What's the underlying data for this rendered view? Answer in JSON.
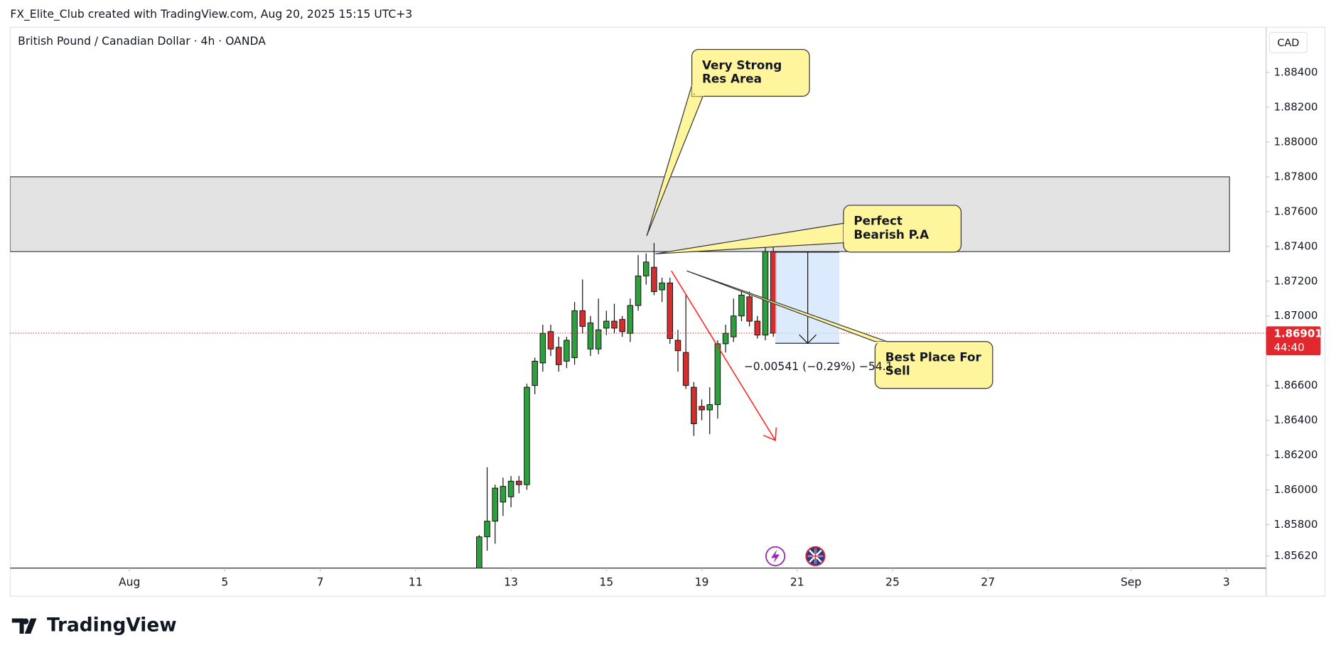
{
  "header": "FX_Elite_Club created with TradingView.com, Aug 20, 2025 15:15 UTC+3",
  "logo": "TradingView",
  "chart_data": {
    "type": "candlestick",
    "title": "British Pound / Canadian Dollar · 4h · OANDA",
    "currency": "CAD",
    "x": [
      44,
      45,
      46,
      47,
      48,
      49,
      50,
      51,
      52,
      53,
      54,
      55,
      56,
      57,
      58,
      59,
      60,
      61,
      62,
      63,
      64,
      65,
      66,
      67,
      68,
      69,
      70,
      71,
      72,
      73,
      74,
      75,
      76,
      77,
      78,
      79,
      80,
      81
    ],
    "open": [
      1.8555,
      1.8573,
      1.8582,
      1.8593,
      1.8596,
      1.8605,
      1.8603,
      1.866,
      1.8673,
      1.8691,
      1.8682,
      1.8674,
      1.8676,
      1.8703,
      1.8681,
      1.8681,
      1.8693,
      1.8697,
      1.8698,
      1.869,
      1.8706,
      1.8723,
      1.8728,
      1.8715,
      1.8719,
      1.8686,
      1.8679,
      1.8659,
      1.8648,
      1.8646,
      1.8649,
      1.8684,
      1.8688,
      1.87,
      1.8711,
      1.8697,
      1.8689,
      1.8737
    ],
    "high": [
      1.8574,
      1.8613,
      1.8603,
      1.8607,
      1.8608,
      1.8608,
      1.8661,
      1.8676,
      1.8695,
      1.8695,
      1.8688,
      1.8688,
      1.8708,
      1.8721,
      1.87,
      1.871,
      1.8703,
      1.8707,
      1.87,
      1.871,
      1.8735,
      1.8736,
      1.8742,
      1.8722,
      1.8722,
      1.8692,
      1.8712,
      1.8662,
      1.8652,
      1.8659,
      1.8686,
      1.8695,
      1.871,
      1.8714,
      1.8714,
      1.87,
      1.874,
      1.8741
    ],
    "low": [
      1.855,
      1.8565,
      1.8569,
      1.8585,
      1.859,
      1.8598,
      1.86,
      1.8655,
      1.8668,
      1.8677,
      1.8668,
      1.867,
      1.8672,
      1.869,
      1.8677,
      1.8678,
      1.8689,
      1.869,
      1.8688,
      1.8685,
      1.8703,
      1.8718,
      1.8712,
      1.8708,
      1.8684,
      1.8668,
      1.8658,
      1.8631,
      1.864,
      1.8632,
      1.8641,
      1.8679,
      1.8685,
      1.8697,
      1.8694,
      1.8687,
      1.8686,
      1.8688
    ],
    "close": [
      1.8573,
      1.8582,
      1.8601,
      1.8602,
      1.8605,
      1.8603,
      1.8659,
      1.8674,
      1.869,
      1.8681,
      1.8672,
      1.8686,
      1.8703,
      1.8694,
      1.8696,
      1.8692,
      1.8697,
      1.8693,
      1.8691,
      1.8706,
      1.8723,
      1.8731,
      1.8714,
      1.8719,
      1.8687,
      1.868,
      1.866,
      1.8638,
      1.8646,
      1.8649,
      1.8684,
      1.869,
      1.87,
      1.8712,
      1.8697,
      1.8689,
      1.8737,
      1.86901
    ],
    "up_color": "#2e9e3e",
    "down_color": "#d32f2f",
    "xlim": [
      -15,
      143
    ],
    "ylim": [
      1.8555,
      1.8866
    ],
    "xticks": [
      {
        "value": 0,
        "label": "Aug"
      },
      {
        "value": 12,
        "label": "5"
      },
      {
        "value": 24,
        "label": "7"
      },
      {
        "value": 36,
        "label": "11"
      },
      {
        "value": 48,
        "label": "13"
      },
      {
        "value": 60,
        "label": "15"
      },
      {
        "value": 72,
        "label": "19"
      },
      {
        "value": 84,
        "label": "21"
      },
      {
        "value": 96,
        "label": "25"
      },
      {
        "value": 108,
        "label": "27"
      },
      {
        "value": 126,
        "label": "Sep"
      },
      {
        "value": 138,
        "label": "3"
      }
    ],
    "yticks": [
      {
        "value": 1.884,
        "label": "1.88400"
      },
      {
        "value": 1.882,
        "label": "1.88200"
      },
      {
        "value": 1.88,
        "label": "1.88000"
      },
      {
        "value": 1.878,
        "label": "1.87800"
      },
      {
        "value": 1.876,
        "label": "1.87600"
      },
      {
        "value": 1.874,
        "label": "1.87400"
      },
      {
        "value": 1.872,
        "label": "1.87200"
      },
      {
        "value": 1.87,
        "label": "1.87000"
      },
      {
        "value": 1.866,
        "label": "1.86600"
      },
      {
        "value": 1.864,
        "label": "1.86400"
      },
      {
        "value": 1.862,
        "label": "1.86200"
      },
      {
        "value": 1.86,
        "label": "1.86000"
      },
      {
        "value": 1.858,
        "label": "1.85800"
      },
      {
        "value": 1.8562,
        "label": "1.85620"
      }
    ],
    "grid": false,
    "last_price": 1.86901,
    "last_price_color": "#e0282e",
    "countdown": "44:40",
    "resistance_zone": [
      1.8737,
      1.878
    ],
    "measure_label": "−0.00541 (−0.29%) −54.1",
    "annotations": [
      [
        "Very Strong",
        "Res Area"
      ],
      [
        "Perfect",
        "Bearish P.A"
      ],
      [
        "Best Place For",
        "Sell"
      ]
    ]
  }
}
